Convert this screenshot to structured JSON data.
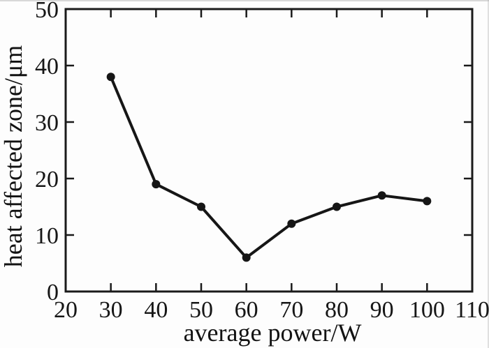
{
  "chart_data": {
    "type": "line",
    "title": "",
    "xlabel": "average power/W",
    "ylabel": "heat affected zone/μm",
    "x": [
      30,
      40,
      50,
      60,
      70,
      80,
      90,
      100
    ],
    "y": [
      38,
      19,
      15,
      6,
      12,
      15,
      17,
      16
    ],
    "series": [
      {
        "name": "heat affected zone",
        "values": [
          38,
          19,
          15,
          6,
          12,
          15,
          17,
          16
        ]
      }
    ],
    "xlim": [
      20,
      110
    ],
    "ylim": [
      0,
      50
    ],
    "x_ticks": [
      20,
      30,
      40,
      50,
      60,
      70,
      80,
      90,
      100,
      110
    ],
    "y_ticks": [
      0,
      10,
      20,
      30,
      40,
      50
    ],
    "grid": false,
    "legend": "none",
    "frame": "full-box-with-inward-ticks",
    "marker": "filled-circle",
    "line_color": "#161616",
    "axis_color": "#1a1a1a",
    "background": "#fdfdfd"
  }
}
